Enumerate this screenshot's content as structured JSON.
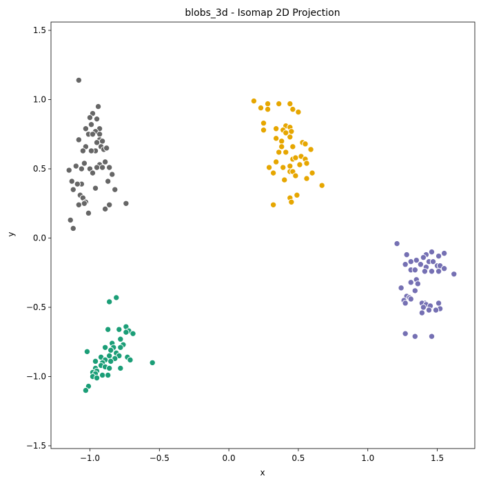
{
  "chart_data": {
    "type": "scatter",
    "title": "blobs_3d - Isomap 2D Projection",
    "xlabel": "x",
    "ylabel": "y",
    "xlim": [
      -1.28,
      1.77
    ],
    "ylim": [
      -1.52,
      1.56
    ],
    "xticks": [
      -1.0,
      -0.5,
      0.0,
      0.5,
      1.0,
      1.5
    ],
    "xtick_labels": [
      "−1.0",
      "−0.5",
      "0.0",
      "0.5",
      "1.0",
      "1.5"
    ],
    "yticks": [
      -1.5,
      -1.0,
      -0.5,
      0.0,
      0.5,
      1.0,
      1.5
    ],
    "ytick_labels": [
      "−1.5",
      "−1.0",
      "−0.5",
      "0.0",
      "0.5",
      "1.0",
      "1.5"
    ],
    "grid": false,
    "legend": false,
    "marker_edge_color": "#ffffff",
    "series": [
      {
        "color": "#666666",
        "points": [
          [
            -1.08,
            1.14
          ],
          [
            -0.94,
            0.95
          ],
          [
            -0.98,
            0.9
          ],
          [
            -1.0,
            0.87
          ],
          [
            -0.95,
            0.86
          ],
          [
            -0.99,
            0.82
          ],
          [
            -1.03,
            0.79
          ],
          [
            -0.93,
            0.79
          ],
          [
            -0.96,
            0.77
          ],
          [
            -1.01,
            0.75
          ],
          [
            -0.98,
            0.75
          ],
          [
            -0.93,
            0.75
          ],
          [
            -1.08,
            0.71
          ],
          [
            -0.93,
            0.71
          ],
          [
            -0.95,
            0.69
          ],
          [
            -0.91,
            0.7
          ],
          [
            -0.92,
            0.66
          ],
          [
            -0.9,
            0.64
          ],
          [
            -0.88,
            0.65
          ],
          [
            -1.03,
            0.66
          ],
          [
            -0.96,
            0.63
          ],
          [
            -1.05,
            0.63
          ],
          [
            -0.99,
            0.63
          ],
          [
            -1.04,
            0.54
          ],
          [
            -0.93,
            0.53
          ],
          [
            -0.95,
            0.51
          ],
          [
            -0.89,
            0.55
          ],
          [
            -0.91,
            0.51
          ],
          [
            -0.86,
            0.51
          ],
          [
            -1.1,
            0.52
          ],
          [
            -1.15,
            0.49
          ],
          [
            -1.0,
            0.5
          ],
          [
            -1.06,
            0.5
          ],
          [
            -0.84,
            0.46
          ],
          [
            -0.98,
            0.47
          ],
          [
            -0.87,
            0.41
          ],
          [
            -1.13,
            0.41
          ],
          [
            -1.06,
            0.39
          ],
          [
            -1.09,
            0.39
          ],
          [
            -0.96,
            0.36
          ],
          [
            -1.12,
            0.35
          ],
          [
            -0.82,
            0.35
          ],
          [
            -1.07,
            0.31
          ],
          [
            -1.05,
            0.29
          ],
          [
            -1.03,
            0.26
          ],
          [
            -1.04,
            0.25
          ],
          [
            -1.08,
            0.24
          ],
          [
            -0.74,
            0.25
          ],
          [
            -0.86,
            0.24
          ],
          [
            -0.89,
            0.21
          ],
          [
            -1.01,
            0.18
          ],
          [
            -1.14,
            0.13
          ],
          [
            -1.12,
            0.07
          ]
        ]
      },
      {
        "color": "#e6a600",
        "points": [
          [
            0.18,
            0.99
          ],
          [
            0.23,
            0.94
          ],
          [
            0.28,
            0.97
          ],
          [
            0.36,
            0.97
          ],
          [
            0.44,
            0.97
          ],
          [
            0.28,
            0.93
          ],
          [
            0.46,
            0.93
          ],
          [
            0.5,
            0.91
          ],
          [
            0.25,
            0.83
          ],
          [
            0.41,
            0.81
          ],
          [
            0.44,
            0.8
          ],
          [
            0.34,
            0.79
          ],
          [
            0.39,
            0.78
          ],
          [
            0.45,
            0.77
          ],
          [
            0.25,
            0.78
          ],
          [
            0.41,
            0.76
          ],
          [
            0.44,
            0.73
          ],
          [
            0.34,
            0.72
          ],
          [
            0.38,
            0.7
          ],
          [
            0.53,
            0.69
          ],
          [
            0.55,
            0.68
          ],
          [
            0.38,
            0.66
          ],
          [
            0.46,
            0.66
          ],
          [
            0.59,
            0.64
          ],
          [
            0.36,
            0.62
          ],
          [
            0.41,
            0.62
          ],
          [
            0.52,
            0.59
          ],
          [
            0.46,
            0.57
          ],
          [
            0.48,
            0.58
          ],
          [
            0.55,
            0.57
          ],
          [
            0.34,
            0.55
          ],
          [
            0.51,
            0.53
          ],
          [
            0.44,
            0.52
          ],
          [
            0.39,
            0.51
          ],
          [
            0.29,
            0.51
          ],
          [
            0.56,
            0.54
          ],
          [
            0.6,
            0.47
          ],
          [
            0.44,
            0.48
          ],
          [
            0.46,
            0.48
          ],
          [
            0.32,
            0.47
          ],
          [
            0.48,
            0.45
          ],
          [
            0.56,
            0.43
          ],
          [
            0.4,
            0.42
          ],
          [
            0.67,
            0.38
          ],
          [
            0.49,
            0.31
          ],
          [
            0.44,
            0.29
          ],
          [
            0.45,
            0.26
          ],
          [
            0.32,
            0.24
          ]
        ]
      },
      {
        "color": "#7570b3",
        "points": [
          [
            1.21,
            -0.04
          ],
          [
            1.46,
            -0.1
          ],
          [
            1.55,
            -0.11
          ],
          [
            1.42,
            -0.12
          ],
          [
            1.28,
            -0.12
          ],
          [
            1.51,
            -0.13
          ],
          [
            1.4,
            -0.14
          ],
          [
            1.35,
            -0.16
          ],
          [
            1.31,
            -0.17
          ],
          [
            1.44,
            -0.17
          ],
          [
            1.47,
            -0.17
          ],
          [
            1.27,
            -0.19
          ],
          [
            1.38,
            -0.19
          ],
          [
            1.5,
            -0.2
          ],
          [
            1.52,
            -0.2
          ],
          [
            1.42,
            -0.21
          ],
          [
            1.55,
            -0.22
          ],
          [
            1.31,
            -0.23
          ],
          [
            1.34,
            -0.23
          ],
          [
            1.41,
            -0.24
          ],
          [
            1.46,
            -0.24
          ],
          [
            1.51,
            -0.24
          ],
          [
            1.62,
            -0.26
          ],
          [
            1.35,
            -0.3
          ],
          [
            1.31,
            -0.32
          ],
          [
            1.36,
            -0.33
          ],
          [
            1.24,
            -0.36
          ],
          [
            1.34,
            -0.38
          ],
          [
            1.28,
            -0.42
          ],
          [
            1.3,
            -0.43
          ],
          [
            1.31,
            -0.44
          ],
          [
            1.26,
            -0.45
          ],
          [
            1.27,
            -0.47
          ],
          [
            1.41,
            -0.47
          ],
          [
            1.39,
            -0.47
          ],
          [
            1.51,
            -0.47
          ],
          [
            1.42,
            -0.48
          ],
          [
            1.45,
            -0.49
          ],
          [
            1.4,
            -0.5
          ],
          [
            1.52,
            -0.51
          ],
          [
            1.49,
            -0.52
          ],
          [
            1.44,
            -0.52
          ],
          [
            1.39,
            -0.54
          ],
          [
            1.27,
            -0.69
          ],
          [
            1.34,
            -0.71
          ],
          [
            1.46,
            -0.71
          ]
        ]
      },
      {
        "color": "#1b9e77",
        "points": [
          [
            -0.81,
            -0.43
          ],
          [
            -0.86,
            -0.46
          ],
          [
            -0.74,
            -0.64
          ],
          [
            -0.72,
            -0.67
          ],
          [
            -0.79,
            -0.66
          ],
          [
            -0.87,
            -0.66
          ],
          [
            -0.74,
            -0.68
          ],
          [
            -0.69,
            -0.69
          ],
          [
            -0.78,
            -0.73
          ],
          [
            -0.76,
            -0.77
          ],
          [
            -0.84,
            -0.76
          ],
          [
            -0.78,
            -0.79
          ],
          [
            -0.83,
            -0.79
          ],
          [
            -0.89,
            -0.79
          ],
          [
            -0.85,
            -0.81
          ],
          [
            -0.81,
            -0.83
          ],
          [
            -1.02,
            -0.82
          ],
          [
            -0.86,
            -0.85
          ],
          [
            -0.79,
            -0.85
          ],
          [
            -0.92,
            -0.86
          ],
          [
            -0.73,
            -0.86
          ],
          [
            -0.89,
            -0.88
          ],
          [
            -0.82,
            -0.87
          ],
          [
            -0.96,
            -0.89
          ],
          [
            -0.71,
            -0.88
          ],
          [
            -0.85,
            -0.89
          ],
          [
            -0.91,
            -0.9
          ],
          [
            -0.55,
            -0.9
          ],
          [
            -0.92,
            -0.92
          ],
          [
            -0.89,
            -0.93
          ],
          [
            -0.96,
            -0.94
          ],
          [
            -0.86,
            -0.94
          ],
          [
            -0.78,
            -0.94
          ],
          [
            -0.98,
            -0.97
          ],
          [
            -0.95,
            -0.96
          ],
          [
            -0.96,
            -0.98
          ],
          [
            -0.91,
            -0.99
          ],
          [
            -0.87,
            -0.99
          ],
          [
            -0.98,
            -1.0
          ],
          [
            -0.95,
            -1.01
          ],
          [
            -1.01,
            -1.07
          ],
          [
            -1.03,
            -1.1
          ]
        ]
      }
    ]
  }
}
